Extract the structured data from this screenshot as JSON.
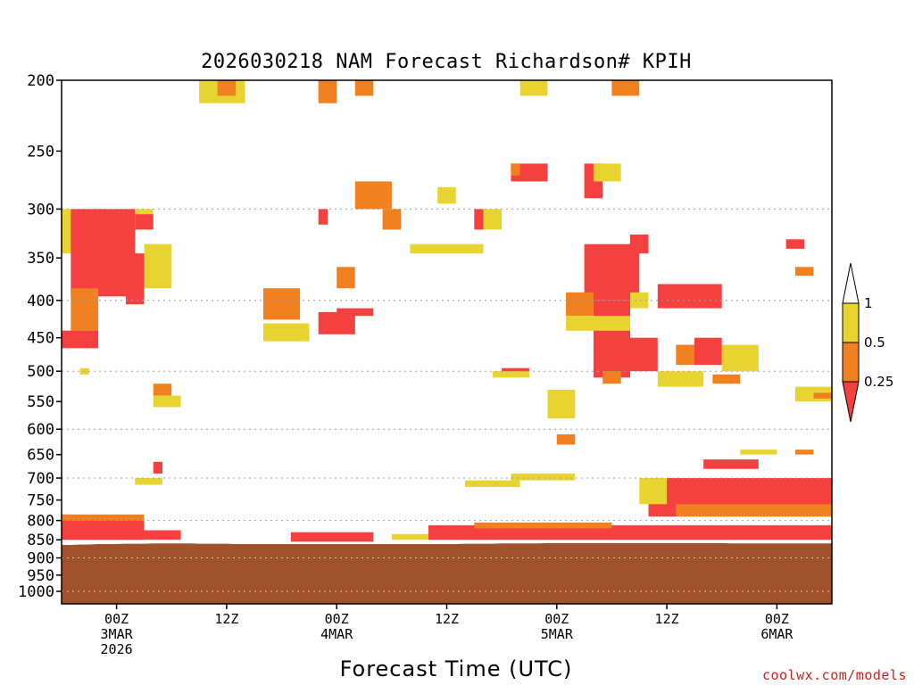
{
  "chart_data": {
    "type": "heatmap",
    "title": "2026030218 NAM Forecast Richardson# KPIH",
    "xlabel": "Forecast Time (UTC)",
    "ylabel": "",
    "y_scale": "log-pressure",
    "y_ticks": [
      200,
      250,
      300,
      350,
      400,
      450,
      500,
      550,
      600,
      650,
      700,
      750,
      800,
      850,
      900,
      950,
      1000
    ],
    "y_gridlines": [
      300,
      400,
      500,
      600,
      700,
      800,
      900,
      1000
    ],
    "ylim": [
      1000,
      200
    ],
    "x_ticks": [
      {
        "hour": 6,
        "line1": "00Z",
        "line2": "3MAR",
        "line3": "2026"
      },
      {
        "hour": 18,
        "line1": "12Z",
        "line2": "",
        "line3": ""
      },
      {
        "hour": 30,
        "line1": "00Z",
        "line2": "4MAR",
        "line3": ""
      },
      {
        "hour": 42,
        "line1": "12Z",
        "line2": "",
        "line3": ""
      },
      {
        "hour": 54,
        "line1": "00Z",
        "line2": "5MAR",
        "line3": ""
      },
      {
        "hour": 66,
        "line1": "12Z",
        "line2": "",
        "line3": ""
      },
      {
        "hour": 78,
        "line1": "00Z",
        "line2": "6MAR",
        "line3": ""
      }
    ],
    "xlim_hours": [
      0,
      84
    ],
    "legend": {
      "placement": "right",
      "levels": [
        {
          "label": "1",
          "value": 1,
          "color": "#e8d430"
        },
        {
          "label": "0.5",
          "value": 0.5,
          "color": "#f08020"
        },
        {
          "label": "0.25",
          "value": 0.25,
          "color": "#f54040"
        }
      ]
    },
    "colors": {
      "high": "#e8d430",
      "mid": "#f08020",
      "low": "#f54040",
      "ground": "#a0522d",
      "grid": "#a0a0a0"
    },
    "ground": {
      "surface_pressure": [
        862,
        862,
        861,
        861,
        860,
        860,
        860,
        859,
        859,
        859,
        858,
        858,
        858,
        858,
        858,
        859,
        859,
        859,
        859,
        860,
        860,
        860,
        860,
        860,
        860,
        860,
        860,
        860,
        860,
        860,
        860,
        860,
        860,
        860,
        860,
        860,
        860,
        860,
        860,
        860,
        860,
        860,
        860,
        860,
        859,
        859,
        859,
        859,
        858,
        858,
        858,
        858,
        858,
        857,
        857,
        857,
        857,
        857,
        857,
        857,
        857,
        857,
        857,
        857,
        857,
        857,
        857,
        857,
        857,
        857,
        857,
        857,
        857,
        858,
        858,
        858,
        858,
        858,
        858,
        858,
        858,
        858,
        858,
        858,
        858
      ]
    },
    "richardson_regions": [
      {
        "category": "high",
        "hours": [
          0,
          8
        ],
        "pressure": [
          300,
          345
        ]
      },
      {
        "category": "low",
        "hours": [
          1,
          8
        ],
        "pressure": [
          300,
          395
        ]
      },
      {
        "category": "mid",
        "hours": [
          1,
          4
        ],
        "pressure": [
          385,
          440
        ]
      },
      {
        "category": "low",
        "hours": [
          0,
          4
        ],
        "pressure": [
          440,
          465
        ]
      },
      {
        "category": "high",
        "hours": [
          2,
          3
        ],
        "pressure": [
          495,
          505
        ]
      },
      {
        "category": "high",
        "hours": [
          8,
          10
        ],
        "pressure": [
          300,
          320
        ]
      },
      {
        "category": "low",
        "hours": [
          8,
          10
        ],
        "pressure": [
          305,
          320
        ]
      },
      {
        "category": "low",
        "hours": [
          7,
          9
        ],
        "pressure": [
          345,
          405
        ]
      },
      {
        "category": "high",
        "hours": [
          9,
          12
        ],
        "pressure": [
          335,
          385
        ]
      },
      {
        "category": "mid",
        "hours": [
          10,
          12
        ],
        "pressure": [
          520,
          540
        ]
      },
      {
        "category": "high",
        "hours": [
          10,
          13
        ],
        "pressure": [
          540,
          560
        ]
      },
      {
        "category": "low",
        "hours": [
          10,
          11
        ],
        "pressure": [
          665,
          690
        ]
      },
      {
        "category": "high",
        "hours": [
          8,
          11
        ],
        "pressure": [
          700,
          715
        ]
      },
      {
        "category": "high",
        "hours": [
          15,
          20
        ],
        "pressure": [
          200,
          215
        ]
      },
      {
        "category": "mid",
        "hours": [
          17,
          19
        ],
        "pressure": [
          200,
          210
        ]
      },
      {
        "category": "mid",
        "hours": [
          22,
          26
        ],
        "pressure": [
          385,
          425
        ]
      },
      {
        "category": "high",
        "hours": [
          22,
          27
        ],
        "pressure": [
          430,
          455
        ]
      },
      {
        "category": "high",
        "hours": [
          28,
          29
        ],
        "pressure": [
          200,
          210
        ]
      },
      {
        "category": "mid",
        "hours": [
          28,
          30
        ],
        "pressure": [
          200,
          215
        ]
      },
      {
        "category": "mid",
        "hours": [
          32,
          34
        ],
        "pressure": [
          200,
          210
        ]
      },
      {
        "category": "low",
        "hours": [
          28,
          29
        ],
        "pressure": [
          300,
          315
        ]
      },
      {
        "category": "mid",
        "hours": [
          30,
          32
        ],
        "pressure": [
          360,
          385
        ]
      },
      {
        "category": "low",
        "hours": [
          28,
          32
        ],
        "pressure": [
          415,
          445
        ]
      },
      {
        "category": "low",
        "hours": [
          30,
          34
        ],
        "pressure": [
          410,
          420
        ]
      },
      {
        "category": "mid",
        "hours": [
          32,
          36
        ],
        "pressure": [
          275,
          300
        ]
      },
      {
        "category": "mid",
        "hours": [
          35,
          37
        ],
        "pressure": [
          300,
          320
        ]
      },
      {
        "category": "high",
        "hours": [
          41,
          43
        ],
        "pressure": [
          280,
          295
        ]
      },
      {
        "category": "high",
        "hours": [
          38,
          46
        ],
        "pressure": [
          335,
          345
        ]
      },
      {
        "category": "low",
        "hours": [
          45,
          46
        ],
        "pressure": [
          300,
          320
        ]
      },
      {
        "category": "high",
        "hours": [
          46,
          48
        ],
        "pressure": [
          300,
          320
        ]
      },
      {
        "category": "low",
        "hours": [
          49,
          53
        ],
        "pressure": [
          260,
          275
        ]
      },
      {
        "category": "mid",
        "hours": [
          49,
          50
        ],
        "pressure": [
          260,
          270
        ]
      },
      {
        "category": "high",
        "hours": [
          50,
          53
        ],
        "pressure": [
          200,
          210
        ]
      },
      {
        "category": "low",
        "hours": [
          48,
          51
        ],
        "pressure": [
          495,
          505
        ]
      },
      {
        "category": "high",
        "hours": [
          47,
          51
        ],
        "pressure": [
          500,
          510
        ]
      },
      {
        "category": "low",
        "hours": [
          57,
          59
        ],
        "pressure": [
          260,
          290
        ]
      },
      {
        "category": "high",
        "hours": [
          58,
          61
        ],
        "pressure": [
          260,
          275
        ]
      },
      {
        "category": "mid",
        "hours": [
          60,
          63
        ],
        "pressure": [
          200,
          210
        ]
      },
      {
        "category": "low",
        "hours": [
          57,
          63
        ],
        "pressure": [
          335,
          400
        ]
      },
      {
        "category": "mid",
        "hours": [
          55,
          58
        ],
        "pressure": [
          390,
          420
        ]
      },
      {
        "category": "low",
        "hours": [
          58,
          62
        ],
        "pressure": [
          400,
          510
        ]
      },
      {
        "category": "mid",
        "hours": [
          59,
          61
        ],
        "pressure": [
          500,
          520
        ]
      },
      {
        "category": "high",
        "hours": [
          55,
          62
        ],
        "pressure": [
          420,
          440
        ]
      },
      {
        "category": "high",
        "hours": [
          53,
          56
        ],
        "pressure": [
          530,
          580
        ]
      },
      {
        "category": "mid",
        "hours": [
          54,
          56
        ],
        "pressure": [
          610,
          630
        ]
      },
      {
        "category": "low",
        "hours": [
          62,
          64
        ],
        "pressure": [
          325,
          345
        ]
      },
      {
        "category": "high",
        "hours": [
          62,
          64
        ],
        "pressure": [
          390,
          410
        ]
      },
      {
        "category": "low",
        "hours": [
          61,
          65
        ],
        "pressure": [
          450,
          500
        ]
      },
      {
        "category": "low",
        "hours": [
          65,
          72
        ],
        "pressure": [
          380,
          410
        ]
      },
      {
        "category": "mid",
        "hours": [
          67,
          72
        ],
        "pressure": [
          460,
          490
        ]
      },
      {
        "category": "low",
        "hours": [
          69,
          72
        ],
        "pressure": [
          450,
          490
        ]
      },
      {
        "category": "high",
        "hours": [
          65,
          70
        ],
        "pressure": [
          500,
          525
        ]
      },
      {
        "category": "mid",
        "hours": [
          71,
          74
        ],
        "pressure": [
          505,
          520
        ]
      },
      {
        "category": "high",
        "hours": [
          72,
          76
        ],
        "pressure": [
          460,
          500
        ]
      },
      {
        "category": "low",
        "hours": [
          79,
          81
        ],
        "pressure": [
          330,
          340
        ]
      },
      {
        "category": "mid",
        "hours": [
          80,
          82
        ],
        "pressure": [
          360,
          370
        ]
      },
      {
        "category": "high",
        "hours": [
          80,
          84
        ],
        "pressure": [
          525,
          550
        ]
      },
      {
        "category": "mid",
        "hours": [
          82,
          84
        ],
        "pressure": [
          535,
          545
        ]
      },
      {
        "category": "high",
        "hours": [
          74,
          78
        ],
        "pressure": [
          640,
          650
        ]
      },
      {
        "category": "mid",
        "hours": [
          80,
          82
        ],
        "pressure": [
          640,
          650
        ]
      },
      {
        "category": "low",
        "hours": [
          64,
          84
        ],
        "pressure": [
          700,
          790
        ]
      },
      {
        "category": "mid",
        "hours": [
          67,
          84
        ],
        "pressure": [
          760,
          790
        ]
      },
      {
        "category": "high",
        "hours": [
          63,
          66
        ],
        "pressure": [
          700,
          760
        ]
      },
      {
        "category": "low",
        "hours": [
          70,
          76
        ],
        "pressure": [
          660,
          680
        ]
      },
      {
        "category": "high",
        "hours": [
          49,
          56
        ],
        "pressure": [
          690,
          705
        ]
      },
      {
        "category": "high",
        "hours": [
          44,
          50
        ],
        "pressure": [
          705,
          720
        ]
      },
      {
        "category": "low",
        "hours": [
          0,
          9
        ],
        "pressure": [
          790,
          850
        ]
      },
      {
        "category": "mid",
        "hours": [
          0,
          9
        ],
        "pressure": [
          785,
          800
        ]
      },
      {
        "category": "low",
        "hours": [
          0,
          13
        ],
        "pressure": [
          825,
          850
        ]
      },
      {
        "category": "low",
        "hours": [
          25,
          34
        ],
        "pressure": [
          830,
          855
        ]
      },
      {
        "category": "high",
        "hours": [
          36,
          40
        ],
        "pressure": [
          835,
          850
        ]
      },
      {
        "category": "low",
        "hours": [
          40,
          84
        ],
        "pressure": [
          812,
          850
        ]
      },
      {
        "category": "mid",
        "hours": [
          45,
          60
        ],
        "pressure": [
          805,
          820
        ]
      }
    ]
  },
  "branding": {
    "credit": "coolwx.com/models"
  }
}
